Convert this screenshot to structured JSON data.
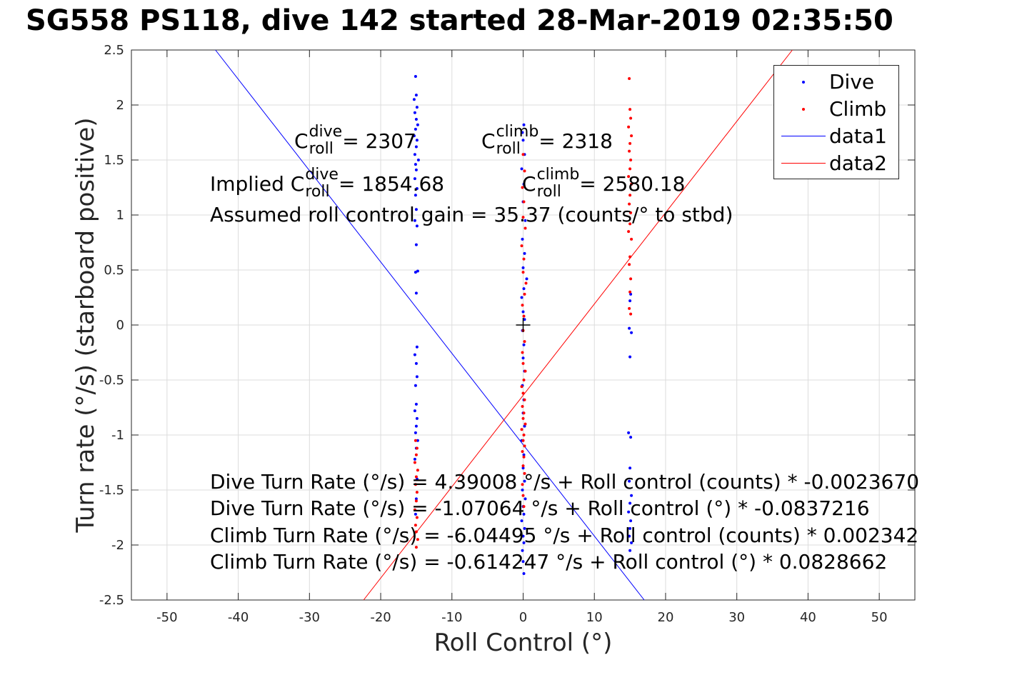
{
  "title": "SG558 PS118, dive 142 started 28-Mar-2019 02:35:50",
  "annotations": {
    "c_dive_label": "C",
    "c_dive_sup": "dive",
    "c_dive_sub": "roll",
    "c_dive_value": " = 2307",
    "c_climb_label": "C",
    "c_climb_sup": "climb",
    "c_climb_sub": "roll",
    "c_climb_value": " = 2318",
    "implied_prefix": "Implied C",
    "implied_dive_sup": "dive",
    "implied_dive_sub": "roll",
    "implied_dive_value": " = 1854.68",
    "implied_climb_label": "C",
    "implied_climb_sup": "climb",
    "implied_climb_sub": "roll",
    "implied_climb_value": " = 2580.18",
    "gain": "Assumed roll control gain = 35.37 (counts/° to stbd)",
    "eq1": "Dive Turn Rate (°/s) = 4.39008 °/s + Roll control (counts) * -0.0023670",
    "eq2": "Dive Turn Rate (°/s) = -1.07064 °/s + Roll control (°) * -0.0837216",
    "eq3": "Climb Turn Rate (°/s) = -6.04495 °/s + Roll control (counts) * 0.002342",
    "eq4": "Climb Turn Rate (°/s) = -0.614247 °/s + Roll control (°) * 0.0828662"
  },
  "legend": {
    "dive": "Dive",
    "climb": "Climb",
    "data1": "data1",
    "data2": "data2"
  },
  "colors": {
    "dive": "#0000ff",
    "climb": "#ff0000",
    "grid": "#dcdcdc",
    "axis": "#262626"
  },
  "chart_data": {
    "type": "scatter",
    "xlabel": "Roll Control (°)",
    "ylabel": "Turn rate (°/s) (starboard positive)",
    "xlim": [
      -55,
      55
    ],
    "ylim": [
      -2.5,
      2.5
    ],
    "xticks": [
      -50,
      -40,
      -30,
      -20,
      -10,
      0,
      10,
      20,
      30,
      40,
      50
    ],
    "yticks": [
      -2.5,
      -2,
      -1.5,
      -1,
      -0.5,
      0,
      0.5,
      1,
      1.5,
      2,
      2.5
    ],
    "xtick_labels": [
      "-50",
      "-40",
      "-30",
      "-20",
      "-10",
      "0",
      "10",
      "20",
      "30",
      "40",
      "50"
    ],
    "ytick_labels": [
      "-2.5",
      "-2",
      "-1.5",
      "-1",
      "-0.5",
      "0",
      "0.5",
      "1",
      "1.5",
      "2",
      "2.5"
    ],
    "grid": true,
    "legend_position": "top-right",
    "series": [
      {
        "name": "Dive",
        "style": "points",
        "points": [
          [
            -15.1,
            2.26
          ],
          [
            -15.0,
            2.09
          ],
          [
            -15.3,
            2.05
          ],
          [
            -14.9,
            1.98
          ],
          [
            -15.2,
            1.93
          ],
          [
            -15.0,
            1.87
          ],
          [
            -14.8,
            1.82
          ],
          [
            -15.1,
            1.78
          ],
          [
            -15.3,
            1.72
          ],
          [
            -14.9,
            1.68
          ],
          [
            -15.0,
            1.62
          ],
          [
            -15.2,
            1.55
          ],
          [
            -14.7,
            1.5
          ],
          [
            -15.1,
            1.46
          ],
          [
            -15.0,
            1.41
          ],
          [
            -15.2,
            1.33
          ],
          [
            -14.9,
            1.24
          ],
          [
            -15.1,
            1.18
          ],
          [
            -15.0,
            1.05
          ],
          [
            -15.2,
            0.95
          ],
          [
            -14.9,
            0.9
          ],
          [
            -15.0,
            0.73
          ],
          [
            -14.8,
            0.49
          ],
          [
            -15.1,
            0.48
          ],
          [
            -15.0,
            0.29
          ],
          [
            -14.9,
            -0.2
          ],
          [
            -15.2,
            -0.27
          ],
          [
            -15.0,
            -0.35
          ],
          [
            -14.9,
            -0.47
          ],
          [
            -15.1,
            -0.55
          ],
          [
            -15.0,
            -0.72
          ],
          [
            -15.2,
            -0.78
          ],
          [
            -14.9,
            -0.85
          ],
          [
            -15.0,
            -0.92
          ],
          [
            -15.1,
            -0.98
          ],
          [
            -14.8,
            -1.05
          ],
          [
            -15.0,
            -1.12
          ],
          [
            -15.2,
            -1.22
          ],
          [
            -14.9,
            -1.4
          ],
          [
            -15.0,
            -1.58
          ],
          [
            -15.1,
            -1.72
          ],
          [
            0.1,
            1.82
          ],
          [
            -0.1,
            1.75
          ],
          [
            0.0,
            1.68
          ],
          [
            0.2,
            1.55
          ],
          [
            -0.2,
            1.42
          ],
          [
            0.1,
            1.28
          ],
          [
            0.0,
            1.12
          ],
          [
            0.3,
            0.95
          ],
          [
            -0.1,
            0.78
          ],
          [
            0.2,
            0.65
          ],
          [
            0.0,
            0.52
          ],
          [
            0.5,
            0.42
          ],
          [
            0.1,
            0.33
          ],
          [
            -0.2,
            0.25
          ],
          [
            0.0,
            0.12
          ],
          [
            0.2,
            0.05
          ],
          [
            -0.1,
            -0.05
          ],
          [
            0.1,
            -0.18
          ],
          [
            0.0,
            -0.3
          ],
          [
            0.2,
            -0.42
          ],
          [
            -0.1,
            -0.55
          ],
          [
            0.1,
            -0.68
          ],
          [
            0.0,
            -0.8
          ],
          [
            0.2,
            -0.92
          ],
          [
            -0.2,
            -1.05
          ],
          [
            0.1,
            -1.18
          ],
          [
            0.0,
            -1.3
          ],
          [
            0.2,
            -1.42
          ],
          [
            -0.1,
            -1.5
          ],
          [
            0.3,
            -1.58
          ],
          [
            0.0,
            -1.65
          ],
          [
            0.1,
            -1.72
          ],
          [
            -0.2,
            -1.78
          ],
          [
            0.2,
            -1.85
          ],
          [
            0.0,
            -1.92
          ],
          [
            0.1,
            -1.98
          ],
          [
            -0.1,
            -2.05
          ],
          [
            0.0,
            -2.15
          ],
          [
            0.1,
            -2.26
          ],
          [
            15.1,
            0.28
          ],
          [
            15.0,
            0.22
          ],
          [
            14.9,
            -0.03
          ],
          [
            15.2,
            -0.07
          ],
          [
            15.0,
            -0.29
          ],
          [
            14.8,
            -0.98
          ],
          [
            15.1,
            -1.02
          ],
          [
            15.0,
            -1.3
          ],
          [
            14.9,
            -1.42
          ],
          [
            15.2,
            -1.55
          ],
          [
            15.0,
            -1.62
          ],
          [
            14.8,
            -1.7
          ],
          [
            15.1,
            -1.78
          ],
          [
            15.0,
            -1.85
          ],
          [
            14.9,
            -1.92
          ],
          [
            15.2,
            -1.98
          ],
          [
            15.0,
            -2.05
          ]
        ]
      },
      {
        "name": "Climb",
        "style": "points",
        "points": [
          [
            14.9,
            2.24
          ],
          [
            15.0,
            1.96
          ],
          [
            15.1,
            1.88
          ],
          [
            14.8,
            1.8
          ],
          [
            15.2,
            1.72
          ],
          [
            15.0,
            1.65
          ],
          [
            14.9,
            1.58
          ],
          [
            15.1,
            1.5
          ],
          [
            15.0,
            1.42
          ],
          [
            14.8,
            1.35
          ],
          [
            15.2,
            1.28
          ],
          [
            15.0,
            1.18
          ],
          [
            14.9,
            1.1
          ],
          [
            15.1,
            1.02
          ],
          [
            15.0,
            0.92
          ],
          [
            14.8,
            0.85
          ],
          [
            15.2,
            0.78
          ],
          [
            15.0,
            0.62
          ],
          [
            14.9,
            0.55
          ],
          [
            15.1,
            0.42
          ],
          [
            15.0,
            0.3
          ],
          [
            14.9,
            0.15
          ],
          [
            15.1,
            0.1
          ],
          [
            0.0,
            1.55
          ],
          [
            0.2,
            1.4
          ],
          [
            -0.1,
            1.25
          ],
          [
            0.1,
            1.12
          ],
          [
            0.0,
            0.98
          ],
          [
            0.3,
            0.88
          ],
          [
            -0.2,
            0.72
          ],
          [
            0.1,
            0.6
          ],
          [
            0.0,
            0.48
          ],
          [
            0.4,
            0.38
          ],
          [
            0.2,
            0.28
          ],
          [
            -0.1,
            0.18
          ],
          [
            0.1,
            0.08
          ],
          [
            0.0,
            -0.05
          ],
          [
            0.2,
            -0.15
          ],
          [
            -0.1,
            -0.25
          ],
          [
            0.0,
            -0.35
          ],
          [
            0.3,
            -0.42
          ],
          [
            0.1,
            -0.5
          ],
          [
            -0.2,
            -0.56
          ],
          [
            0.0,
            -0.62
          ],
          [
            0.2,
            -0.68
          ],
          [
            -0.1,
            -0.74
          ],
          [
            0.1,
            -0.8
          ],
          [
            0.0,
            -0.85
          ],
          [
            0.3,
            -0.9
          ],
          [
            -0.2,
            -0.95
          ],
          [
            0.1,
            -1.0
          ],
          [
            0.0,
            -1.05
          ],
          [
            0.2,
            -1.1
          ],
          [
            -0.1,
            -1.15
          ],
          [
            0.1,
            -1.2
          ],
          [
            0.0,
            -1.28
          ],
          [
            0.2,
            -1.35
          ],
          [
            -0.1,
            -1.45
          ],
          [
            0.0,
            -1.55
          ],
          [
            0.1,
            -1.65
          ],
          [
            -15.1,
            -1.05
          ],
          [
            -14.9,
            -1.12
          ],
          [
            -15.0,
            -1.18
          ],
          [
            -15.2,
            -1.25
          ],
          [
            -14.8,
            -1.32
          ],
          [
            -15.0,
            -1.38
          ],
          [
            -15.1,
            -1.45
          ],
          [
            -14.9,
            -1.52
          ],
          [
            -15.0,
            -1.6
          ],
          [
            -15.2,
            -1.68
          ],
          [
            -14.9,
            -1.75
          ],
          [
            -15.1,
            -1.82
          ],
          [
            -15.0,
            -1.88
          ],
          [
            -14.8,
            -1.95
          ],
          [
            -15.0,
            -2.02
          ]
        ]
      },
      {
        "name": "data1",
        "style": "line",
        "x": [
          -43.2,
          17.0
        ],
        "y": [
          2.5,
          -2.5
        ]
      },
      {
        "name": "data2",
        "style": "line",
        "x": [
          -22.4,
          37.8
        ],
        "y": [
          -2.5,
          2.5
        ]
      }
    ],
    "marker": {
      "x": 0,
      "y": 0,
      "symbol": "+"
    }
  }
}
